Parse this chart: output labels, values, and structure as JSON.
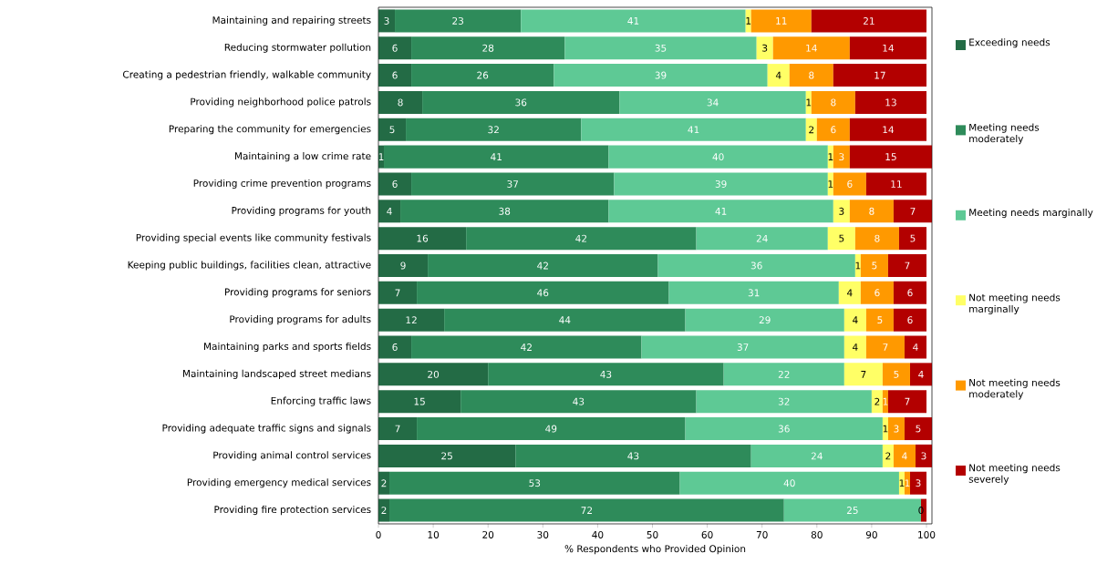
{
  "chart_data": {
    "type": "bar",
    "orientation": "horizontal",
    "stacked": true,
    "xlabel": "% Respondents who Provided Opinion",
    "categories": [
      "Maintaining and repairing streets",
      "Reducing stormwater pollution",
      "Creating a pedestrian friendly, walkable community",
      "Providing neighborhood police patrols",
      "Preparing the community for emergencies",
      "Maintaining a low crime rate",
      "Providing crime prevention programs",
      "Providing programs for youth",
      "Providing special events like community festivals",
      "Keeping public buildings, facilities clean, attractive",
      "Providing programs for seniors",
      "Providing programs for adults",
      "Maintaining parks and sports fields",
      "Maintaining landscaped street medians",
      "Enforcing traffic laws",
      "Providing adequate traffic signs and signals",
      "Providing animal control services",
      "Providing emergency medical services",
      "Providing fire protection services"
    ],
    "series": [
      {
        "name": "Exceeding needs",
        "color": "#236b45",
        "values": [
          3,
          6,
          6,
          8,
          5,
          1,
          6,
          4,
          16,
          9,
          7,
          12,
          6,
          20,
          15,
          7,
          25,
          2,
          2
        ],
        "value_labels": [
          "3",
          "6",
          "6",
          "8",
          "5",
          "1",
          "6",
          "4",
          "16",
          "9",
          "7",
          "12",
          "6",
          "20",
          "15",
          "7",
          "25",
          "2",
          "2"
        ]
      },
      {
        "name": "Meeting needs moderately",
        "color": "#2e8b5a",
        "values": [
          23,
          28,
          26,
          36,
          32,
          41,
          37,
          38,
          42,
          42,
          46,
          44,
          42,
          43,
          43,
          49,
          43,
          53,
          72
        ],
        "value_labels": [
          "23",
          "28",
          "26",
          "36",
          "32",
          "41",
          "37",
          "38",
          "42",
          "42",
          "46",
          "44",
          "42",
          "43",
          "43",
          "49",
          "43",
          "53",
          "72"
        ]
      },
      {
        "name": "Meeting needs marginally",
        "color": "#5ec995",
        "values": [
          41,
          35,
          39,
          34,
          41,
          40,
          39,
          41,
          24,
          36,
          31,
          29,
          37,
          22,
          32,
          36,
          24,
          40,
          25
        ],
        "value_labels": [
          "41",
          "35",
          "39",
          "34",
          "41",
          "40",
          "39",
          "41",
          "24",
          "36",
          "31",
          "29",
          "37",
          "22",
          "32",
          "36",
          "24",
          "40",
          "25"
        ]
      },
      {
        "name": "Not meeting needs marginally",
        "color": "#ffff66",
        "values": [
          1,
          3,
          4,
          1,
          2,
          1,
          1,
          3,
          5,
          1,
          4,
          4,
          4,
          7,
          2,
          1,
          2,
          1,
          0
        ],
        "value_labels": [
          "1",
          "3",
          "4",
          "1",
          "2",
          "1",
          "1",
          "3",
          "5",
          "1",
          "4",
          "4",
          "4",
          "7",
          "2",
          "1",
          "2",
          "1",
          "0"
        ]
      },
      {
        "name": "Not meeting needs moderately",
        "color": "#ff9900",
        "values": [
          11,
          14,
          8,
          8,
          6,
          3,
          6,
          8,
          8,
          5,
          6,
          5,
          7,
          5,
          1,
          3,
          4,
          1,
          0
        ],
        "value_labels": [
          "11",
          "14",
          "8",
          "8",
          "6",
          "3",
          "6",
          "8",
          "8",
          "5",
          "6",
          "5",
          "7",
          "5",
          "1",
          "3",
          "4",
          "1",
          null
        ]
      },
      {
        "name": "Not meeting needs severely",
        "color": "#b30000",
        "values": [
          21,
          14,
          17,
          13,
          14,
          15,
          11,
          7,
          5,
          7,
          6,
          6,
          4,
          4,
          7,
          5,
          3,
          3,
          1
        ],
        "value_labels": [
          "21",
          "14",
          "17",
          "13",
          "14",
          "15",
          "11",
          "7",
          "5",
          "7",
          "6",
          "6",
          "4",
          "4",
          "7",
          "5",
          "3",
          "3",
          null
        ]
      }
    ],
    "xlim": [
      0,
      101
    ],
    "xticks": [
      0,
      10,
      20,
      30,
      40,
      50,
      60,
      70,
      80,
      90,
      100
    ],
    "legend": "right"
  }
}
